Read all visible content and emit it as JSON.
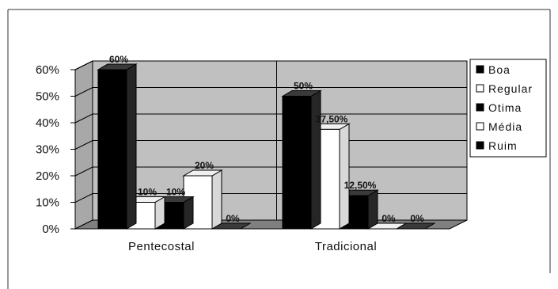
{
  "chart_data": {
    "type": "bar",
    "categories": [
      "Pentecostal",
      "Tradicional"
    ],
    "series": [
      {
        "name": "Boa",
        "values": [
          60,
          50
        ],
        "labels": [
          "60%",
          "50%"
        ],
        "color": "#000000"
      },
      {
        "name": "Regular",
        "values": [
          10,
          37.5
        ],
        "labels": [
          "10%",
          "37,50%"
        ],
        "color": "#ffffff"
      },
      {
        "name": "Otima",
        "values": [
          10,
          12.5
        ],
        "labels": [
          "10%",
          "12,50%"
        ],
        "color": "#000000"
      },
      {
        "name": "Média",
        "values": [
          20,
          0
        ],
        "labels": [
          "20%",
          "0%"
        ],
        "color": "#ffffff"
      },
      {
        "name": "Ruim",
        "values": [
          0,
          0
        ],
        "labels": [
          "0%",
          "0%"
        ],
        "color": "#000000"
      }
    ],
    "ylim": [
      0,
      60
    ],
    "yticks": [
      "0%",
      "10%",
      "20%",
      "30%",
      "40%",
      "50%",
      "60%"
    ],
    "title": "",
    "xlabel": "",
    "ylabel": "",
    "grid": true,
    "legend": "right",
    "wall_color": "#c0c0c0",
    "floor_color": "#808080"
  }
}
